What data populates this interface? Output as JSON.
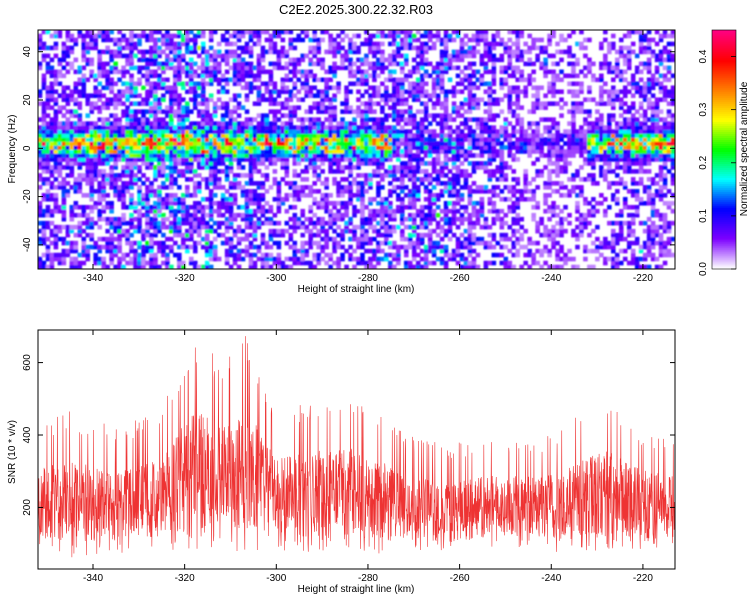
{
  "title": "C2E2.2025.300.22.32.R03",
  "chart_data": [
    {
      "type": "heatmap",
      "title": "C2E2.2025.300.22.32.R03",
      "xlabel": "Height of straight line (km)",
      "ylabel": "Frequency (Hz)",
      "xlim": [
        -352,
        -213
      ],
      "ylim": [
        -50,
        49
      ],
      "xticks": [
        -340,
        -320,
        -300,
        -280,
        -260,
        -240,
        -220
      ],
      "yticks": [
        -40,
        -20,
        0,
        20,
        40
      ],
      "colorbar": {
        "label": "Normalized spectral amplitude",
        "range": [
          0,
          0.45
        ],
        "ticks": [
          0.0,
          0.1,
          0.2,
          0.3,
          0.4
        ],
        "colormap": [
          "#ffffff",
          "#7c00ff",
          "#0000ff",
          "#00ffff",
          "#00ff00",
          "#ffff00",
          "#ff7f00",
          "#ff0000",
          "#ff007f"
        ]
      },
      "description_signal": {
        "band_center_hz": 2,
        "band_halfwidth_hz": 5,
        "strong_segments_km": [
          [
            -352,
            -275
          ],
          [
            -232,
            -213
          ]
        ],
        "peak_amplitude": 0.45
      }
    },
    {
      "type": "line",
      "xlabel": "Height of straight line (km)",
      "ylabel": "SNR (10 * v/v)",
      "xlim": [
        -352,
        -213
      ],
      "ylim": [
        30,
        690
      ],
      "xticks": [
        -340,
        -320,
        -300,
        -280,
        -260,
        -240,
        -220
      ],
      "yticks": [
        200,
        400,
        600
      ],
      "series": [
        {
          "name": "SNR",
          "color": "#ee3333",
          "envelope": {
            "x": [
              -352,
              -345,
              -335,
              -325,
              -318,
              -312,
              -306,
              -300,
              -292,
              -285,
              -278,
              -272,
              -262,
              -252,
              -242,
              -235,
              -228,
              -220,
              -213
            ],
            "upper": [
              420,
              470,
              420,
              470,
              690,
              600,
              690,
              470,
              510,
              520,
              480,
              400,
              380,
              400,
              390,
              450,
              510,
              420,
              400
            ],
            "lower": [
              90,
              60,
              70,
              80,
              70,
              90,
              70,
              80,
              70,
              80,
              70,
              80,
              70,
              90,
              80,
              70,
              80,
              80,
              70
            ]
          }
        }
      ]
    }
  ]
}
